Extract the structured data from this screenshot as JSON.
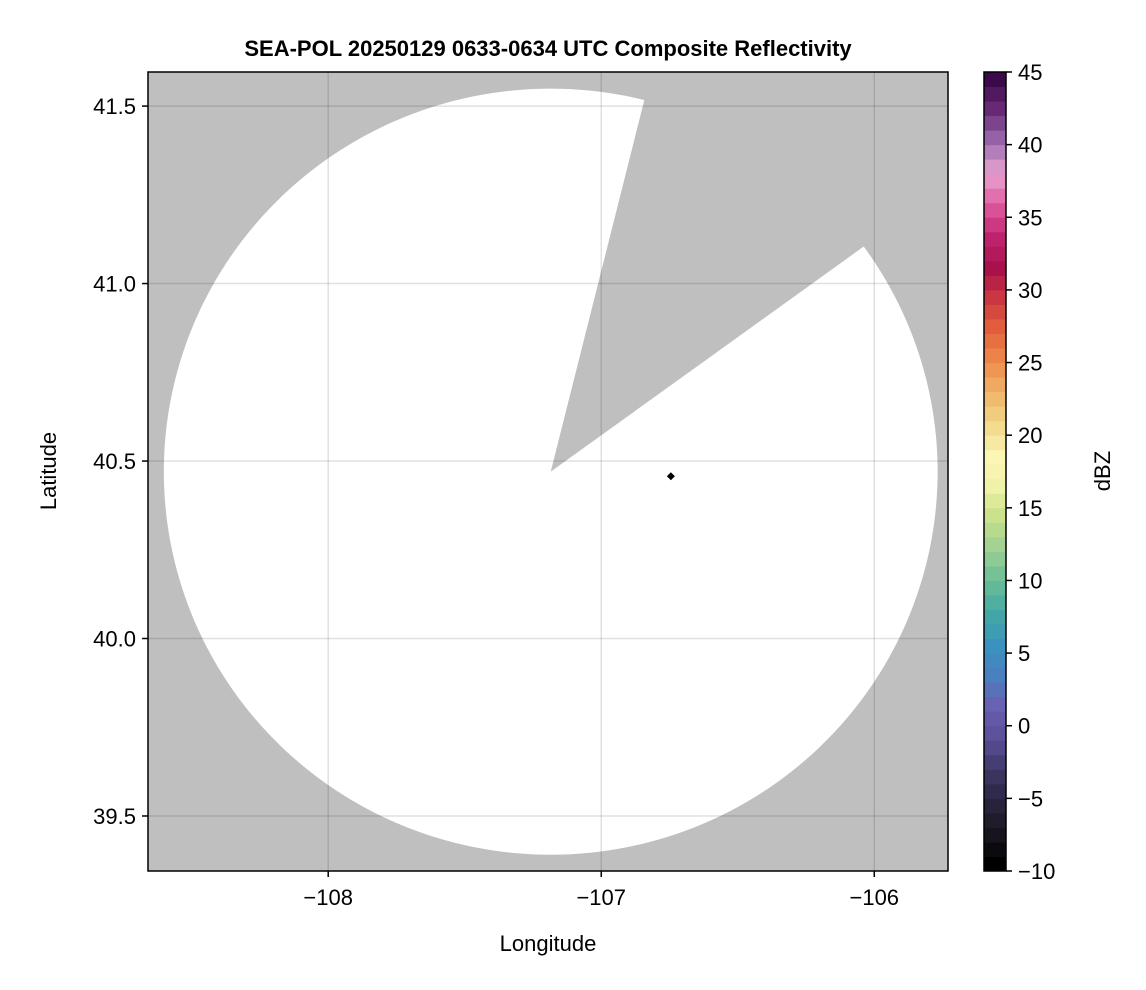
{
  "chart_data": {
    "type": "heatmap",
    "title": "SEA-POL 20250129 0633-0634 UTC Composite Reflectivity",
    "xlabel": "Longitude",
    "ylabel": "Latitude",
    "xlim": [
      -108.66,
      -105.73
    ],
    "ylim": [
      39.345,
      41.596
    ],
    "xticks": [
      -108,
      -107,
      -106
    ],
    "xtick_labels": [
      "−108",
      "−107",
      "−106"
    ],
    "yticks": [
      39.5,
      40.0,
      40.5,
      41.0,
      41.5
    ],
    "ytick_labels": [
      "39.5",
      "40.0",
      "40.5",
      "41.0",
      "41.5"
    ],
    "grid": true,
    "background_color": "#bfbfbf",
    "no_echo_color": "#ffffff",
    "radar_coverage": {
      "center_lon": -107.185,
      "center_lat": 40.47,
      "range_km": 120,
      "blocked_sector_azimuth_deg": [
        14,
        54
      ]
    },
    "marker": {
      "lon": -106.745,
      "lat": 40.457,
      "shape": "diamond",
      "color": "#000000"
    },
    "colorbar": {
      "label": "dBZ",
      "range": [
        -10,
        45
      ],
      "levels": 55,
      "ticks": [
        -10,
        -5,
        0,
        5,
        10,
        15,
        20,
        25,
        30,
        35,
        40,
        45
      ],
      "tick_labels": [
        "−10",
        "−5",
        "0",
        "5",
        "10",
        "15",
        "20",
        "25",
        "30",
        "35",
        "40",
        "45"
      ],
      "colormap_stops": [
        "#000000",
        "#1a1620",
        "#2a2540",
        "#3e3868",
        "#5a4f98",
        "#6a5fb0",
        "#4a7fc0",
        "#3a93be",
        "#44a8a4",
        "#68bd98",
        "#9ccf92",
        "#c6e088",
        "#eef2a8",
        "#fdf6b4",
        "#f2d88a",
        "#f0b468",
        "#ee8c4c",
        "#e4623e",
        "#cc3840",
        "#a8104a",
        "#c02470",
        "#e05aa0",
        "#e8a4d0",
        "#9c6cb0",
        "#6a2a78",
        "#3c0a4a"
      ]
    }
  }
}
